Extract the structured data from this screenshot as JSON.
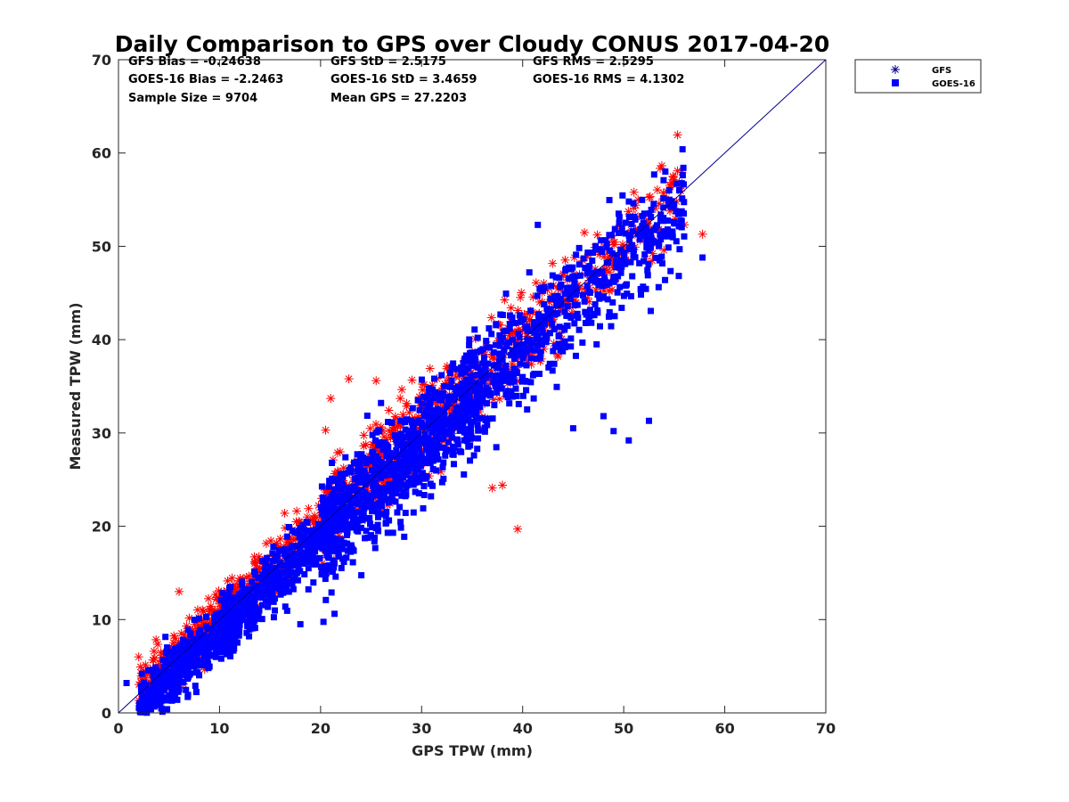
{
  "chart_data": {
    "type": "scatter",
    "title": "Daily Comparison to GPS over Cloudy CONUS 2017-04-20",
    "xlabel": "GPS TPW (mm)",
    "ylabel": "Measured TPW (mm)",
    "xlim": [
      0,
      70
    ],
    "ylim": [
      0,
      70
    ],
    "xticks": [
      "0",
      "10",
      "20",
      "30",
      "40",
      "50",
      "60",
      "70"
    ],
    "yticks": [
      "0",
      "10",
      "20",
      "30",
      "40",
      "50",
      "60",
      "70"
    ],
    "grid": false,
    "legend_position": "outside-top-right",
    "reference_line": {
      "from": [
        0,
        0
      ],
      "to": [
        70,
        70
      ],
      "color": "#00008b"
    },
    "annotations": [
      [
        "GFS Bias = -0.24638",
        "GFS StD = 2.5175",
        "GFS RMS = 2.5295"
      ],
      [
        "GOES-16 Bias = -2.2463",
        "GOES-16 StD = 3.4659",
        "GOES-16 RMS = 4.1302"
      ],
      [
        "Sample Size = 9704",
        "Mean GPS = 27.2203",
        ""
      ]
    ],
    "series": [
      {
        "name": "GFS",
        "marker": "asterisk",
        "color": "#ff0000",
        "legend_color": "#00008b",
        "sample_size": 9704,
        "trend": {
          "slope": 1.0,
          "intercept": -0.24638,
          "spread": 2.5175
        },
        "outliers": [
          [
            39.5,
            19.7
          ],
          [
            38.0,
            24.4
          ],
          [
            37.0,
            24.1
          ],
          [
            57.8,
            51.3
          ],
          [
            56.0,
            52.3
          ],
          [
            22.8,
            35.8
          ],
          [
            21.0,
            33.7
          ],
          [
            25.5,
            35.6
          ],
          [
            20.5,
            30.3
          ],
          [
            2.0,
            6.0
          ],
          [
            6.0,
            13.0
          ]
        ]
      },
      {
        "name": "GOES-16",
        "marker": "square",
        "color": "#0000ff",
        "legend_color": "#0000ff",
        "sample_size": 9704,
        "trend": {
          "slope": 1.0,
          "intercept": -2.2463,
          "spread": 3.4659
        },
        "outliers": [
          [
            41.5,
            52.3
          ],
          [
            54.5,
            56.0
          ],
          [
            49.5,
            53.5
          ],
          [
            57.8,
            48.8
          ],
          [
            50.5,
            29.2
          ],
          [
            49.0,
            30.2
          ],
          [
            52.5,
            31.3
          ],
          [
            45.0,
            30.5
          ],
          [
            48.0,
            31.8
          ],
          [
            3.0,
            2.5
          ],
          [
            0.8,
            3.2
          ],
          [
            12.0,
            9.5
          ],
          [
            18.0,
            9.5
          ]
        ]
      }
    ]
  }
}
